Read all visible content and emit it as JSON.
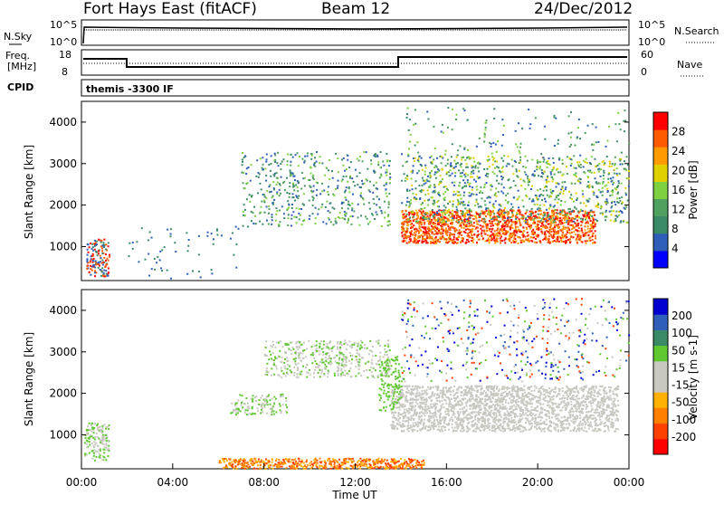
{
  "header": {
    "station": "Fort Hays East (fitACF)",
    "beam": "Beam 12",
    "date": "24/Dec/2012"
  },
  "panels": {
    "nsky": {
      "label": "N.Sky",
      "right_label": "N.Search",
      "y_ticks": [
        "10^5",
        "10^0"
      ],
      "right_ticks": [
        "10^5",
        "10^0"
      ]
    },
    "freq": {
      "label_top": "Freq.",
      "label_bottom": "[MHz]",
      "y_ticks": [
        "18",
        "8"
      ],
      "right_ticks": [
        "60",
        "0"
      ],
      "right_label": "Nave"
    },
    "cpid": {
      "label": "CPID",
      "text": "themis -3300 IF"
    }
  },
  "colors": {
    "power": [
      "#0000ff",
      "#2f5fb8",
      "#3a8a68",
      "#50a060",
      "#7fd040",
      "#e0d000",
      "#ff9a00",
      "#ff5a00",
      "#ff0000"
    ],
    "velocity": [
      "#ff0000",
      "#ff4000",
      "#ff8000",
      "#ffb000",
      "#c8c8c0",
      "#c8c8c0",
      "#60c830",
      "#3a8a68",
      "#2f5fb8",
      "#0000d0"
    ]
  },
  "chart_data": [
    {
      "type": "heatmap",
      "panel": "power",
      "ylabel": "Slant Range [km]",
      "ylim": [
        180,
        4500
      ],
      "xlim": [
        0,
        24
      ],
      "y_ticks": [
        1000,
        2000,
        3000,
        4000
      ],
      "colorbar_label": "Power [dB]",
      "colorbar_ticks": [
        "28",
        "24",
        "20",
        "16",
        "12",
        "8",
        "4"
      ]
    },
    {
      "type": "heatmap",
      "panel": "velocity",
      "ylabel": "Slant Range [km]",
      "xlabel": "Time UT",
      "ylim": [
        180,
        4500
      ],
      "xlim": [
        0,
        24
      ],
      "y_ticks": [
        1000,
        2000,
        3000,
        4000
      ],
      "x_ticks": [
        "00:00",
        "04:00",
        "08:00",
        "12:00",
        "16:00",
        "20:00",
        "00:00"
      ],
      "colorbar_label": "Velocity [m s-1]",
      "colorbar_ticks": [
        "200",
        "100",
        "50",
        "15",
        "-15",
        "-50",
        "-100",
        "-200"
      ]
    }
  ]
}
